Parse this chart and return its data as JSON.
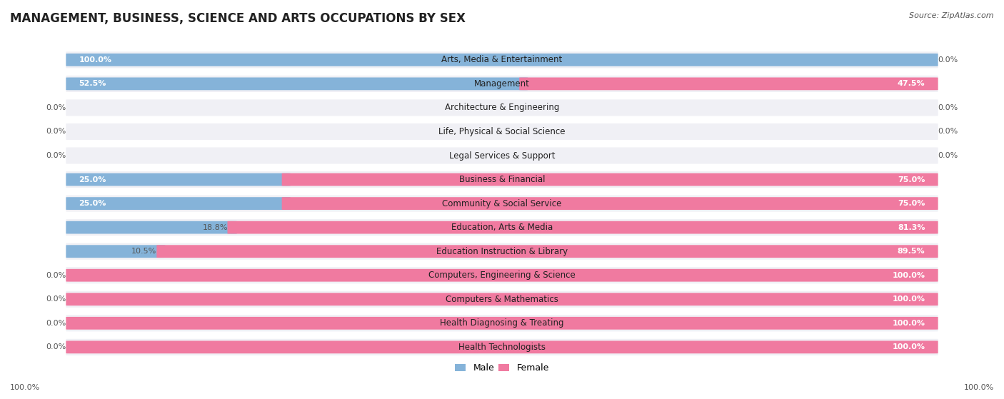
{
  "title": "MANAGEMENT, BUSINESS, SCIENCE AND ARTS OCCUPATIONS BY SEX",
  "source": "Source: ZipAtlas.com",
  "categories": [
    "Arts, Media & Entertainment",
    "Management",
    "Architecture & Engineering",
    "Life, Physical & Social Science",
    "Legal Services & Support",
    "Business & Financial",
    "Community & Social Service",
    "Education, Arts & Media",
    "Education Instruction & Library",
    "Computers, Engineering & Science",
    "Computers & Mathematics",
    "Health Diagnosing & Treating",
    "Health Technologists"
  ],
  "male_pct": [
    100.0,
    52.5,
    0.0,
    0.0,
    0.0,
    25.0,
    25.0,
    18.8,
    10.5,
    0.0,
    0.0,
    0.0,
    0.0
  ],
  "female_pct": [
    0.0,
    47.5,
    0.0,
    0.0,
    0.0,
    75.0,
    75.0,
    81.3,
    89.5,
    100.0,
    100.0,
    100.0,
    100.0
  ],
  "male_color": "#85b3d9",
  "female_color": "#f07aa0",
  "bg_color": "#ffffff",
  "bar_bg_color": "#e2e4ea",
  "row_bg_color": "#f0f0f5",
  "title_fontsize": 12,
  "label_fontsize": 8.5,
  "pct_fontsize": 8,
  "source_fontsize": 8
}
